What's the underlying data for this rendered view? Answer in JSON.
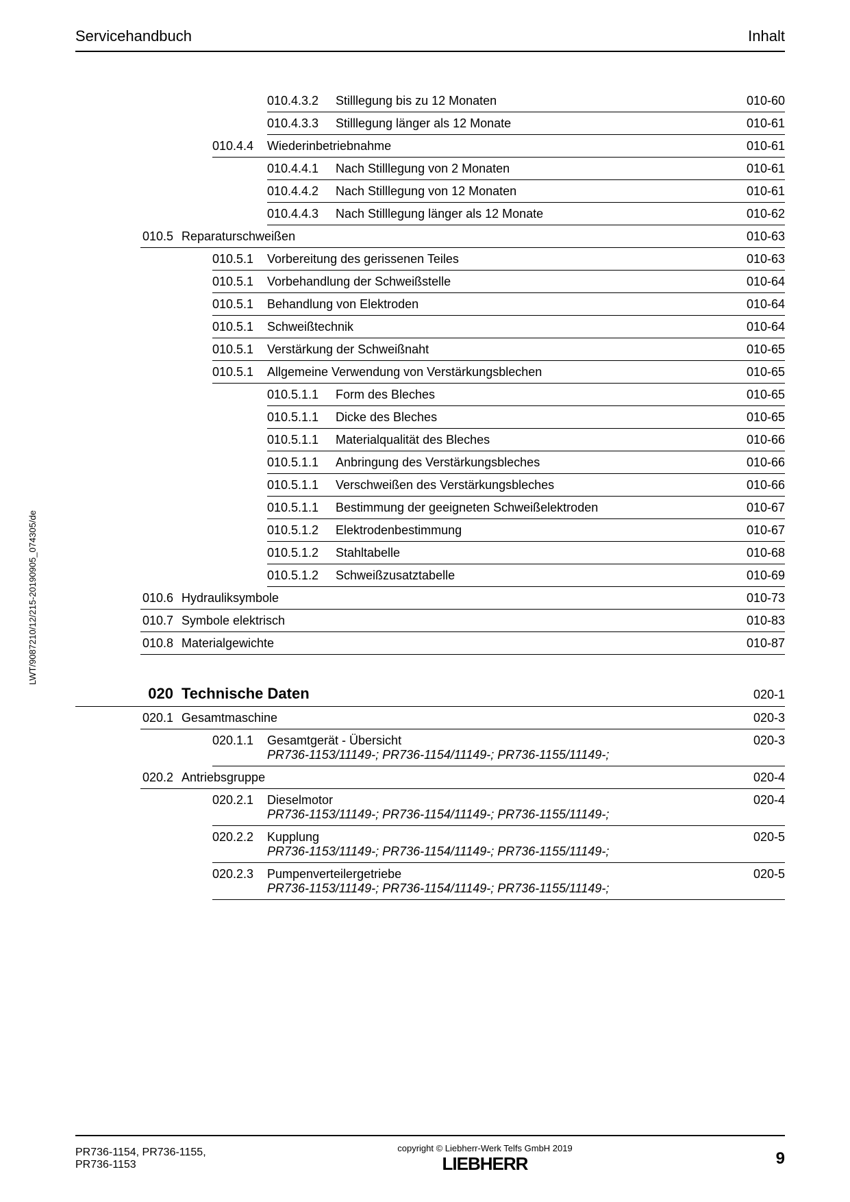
{
  "header": {
    "left": "Servicehandbuch",
    "right": "Inhalt"
  },
  "side_text": "LWT/9087210/12/215-20190905_074305/de",
  "rows": [
    {
      "level": 3,
      "code": "010.4.3.2",
      "title": "Stilllegung bis zu 12 Monaten",
      "page": "010-60"
    },
    {
      "level": 3,
      "code": "010.4.3.3",
      "title": "Stilllegung länger als 12 Monate",
      "page": "010-61"
    },
    {
      "level": 2,
      "code": "010.4.4",
      "title": "Wiederinbetriebnahme",
      "page": "010-61"
    },
    {
      "level": 3,
      "code": "010.4.4.1",
      "title": "Nach Stilllegung von 2 Monaten",
      "page": "010-61"
    },
    {
      "level": 3,
      "code": "010.4.4.2",
      "title": "Nach Stilllegung von 12 Monaten",
      "page": "010-61"
    },
    {
      "level": 3,
      "code": "010.4.4.3",
      "title": "Nach Stilllegung länger als 12 Monate",
      "page": "010-62"
    },
    {
      "level": 1,
      "code": "010.5",
      "title": "Reparaturschweißen",
      "page": "010-63"
    },
    {
      "level": 2,
      "code": "010.5.1",
      "title": "Vorbereitung des gerissenen Teiles",
      "page": "010-63"
    },
    {
      "level": 2,
      "code": "010.5.1",
      "title": "Vorbehandlung der Schweißstelle",
      "page": "010-64"
    },
    {
      "level": 2,
      "code": "010.5.1",
      "title": "Behandlung von Elektroden",
      "page": "010-64"
    },
    {
      "level": 2,
      "code": "010.5.1",
      "title": "Schweißtechnik",
      "page": "010-64"
    },
    {
      "level": 2,
      "code": "010.5.1",
      "title": "Verstärkung der Schweißnaht",
      "page": "010-65"
    },
    {
      "level": 2,
      "code": "010.5.1",
      "title": "Allgemeine Verwendung von Verstärkungsblechen",
      "page": "010-65"
    },
    {
      "level": 3,
      "code": "010.5.1.1",
      "title": "Form des Bleches",
      "page": "010-65"
    },
    {
      "level": 3,
      "code": "010.5.1.1",
      "title": "Dicke des Bleches",
      "page": "010-65"
    },
    {
      "level": 3,
      "code": "010.5.1.1",
      "title": "Materialqualität des Bleches",
      "page": "010-66"
    },
    {
      "level": 3,
      "code": "010.5.1.1",
      "title": "Anbringung des Verstärkungsbleches",
      "page": "010-66"
    },
    {
      "level": 3,
      "code": "010.5.1.1",
      "title": "Verschweißen des Verstärkungsbleches",
      "page": "010-66"
    },
    {
      "level": 3,
      "code": "010.5.1.1",
      "title": "Bestimmung der geeigneten Schweißelektroden",
      "page": "010-67"
    },
    {
      "level": 3,
      "code": "010.5.1.2",
      "title": "Elektrodenbestimmung",
      "page": "010-67"
    },
    {
      "level": 3,
      "code": "010.5.1.2",
      "title": "Stahltabelle",
      "page": "010-68"
    },
    {
      "level": 3,
      "code": "010.5.1.2",
      "title": "Schweißzusatztabelle",
      "page": "010-69"
    },
    {
      "level": 1,
      "code": "010.6",
      "title": "Hydrauliksymbole",
      "page": "010-73"
    },
    {
      "level": 1,
      "code": "010.7",
      "title": "Symbole elektrisch",
      "page": "010-83"
    },
    {
      "level": 1,
      "code": "010.8",
      "title": "Materialgewichte",
      "page": "010-87"
    }
  ],
  "section": {
    "num": "020",
    "title": "Technische Daten",
    "page": "020-1"
  },
  "rows2": [
    {
      "level": 1,
      "code": "020.1",
      "title": "Gesamtmaschine",
      "page": "020-3"
    },
    {
      "level": 2,
      "code": "020.1.1",
      "title": "Gesamtgerät - Übersicht",
      "sub": "PR736-1153/11149-; PR736-1154/11149-; PR736-1155/11149-;",
      "page": "020-3"
    },
    {
      "level": 1,
      "code": "020.2",
      "title": "Antriebsgruppe",
      "page": "020-4"
    },
    {
      "level": 2,
      "code": "020.2.1",
      "title": "Dieselmotor",
      "sub": "PR736-1153/11149-; PR736-1154/11149-; PR736-1155/11149-;",
      "page": "020-4"
    },
    {
      "level": 2,
      "code": "020.2.2",
      "title": "Kupplung",
      "sub": "PR736-1153/11149-; PR736-1154/11149-; PR736-1155/11149-;",
      "page": "020-5"
    },
    {
      "level": 2,
      "code": "020.2.3",
      "title": "Pumpenverteilergetriebe",
      "sub": "PR736-1153/11149-; PR736-1154/11149-; PR736-1155/11149-;",
      "page": "020-5"
    }
  ],
  "footer": {
    "left": "PR736-1154, PR736-1155, PR736-1153",
    "copyright": "copyright © Liebherr-Werk Telfs GmbH 2019",
    "brand": "LIEBHERR",
    "pagenum": "9"
  }
}
